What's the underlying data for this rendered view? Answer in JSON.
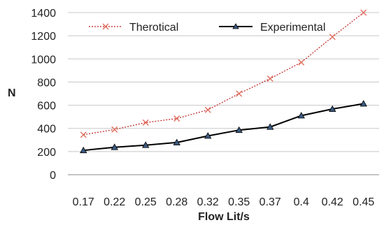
{
  "chart_data": {
    "type": "line",
    "categories": [
      "0.17",
      "0.22",
      "0.25",
      "0.28",
      "0.32",
      "0.35",
      "0.37",
      "0.4",
      "0.42",
      "0.45"
    ],
    "series": [
      {
        "name": "Therotical",
        "values": [
          345,
          390,
          450,
          485,
          560,
          700,
          830,
          970,
          1190,
          1400
        ],
        "color": "#e07060",
        "line_color": "#c02020",
        "line_style": "dotted",
        "marker": "x"
      },
      {
        "name": "Experimental",
        "values": [
          210,
          237,
          255,
          278,
          335,
          385,
          412,
          510,
          567,
          613
        ],
        "color": "#000000",
        "marker_fill": "#3a5a80",
        "line_style": "solid",
        "marker": "triangle"
      }
    ],
    "xlabel": "Flow Lit/s",
    "ylabel": "N",
    "ylim": [
      0,
      1400
    ],
    "y_ticks": [
      "0",
      "200",
      "400",
      "600",
      "800",
      "1000",
      "1200",
      "1400"
    ],
    "grid": "horizontal",
    "legend_position": "top"
  }
}
